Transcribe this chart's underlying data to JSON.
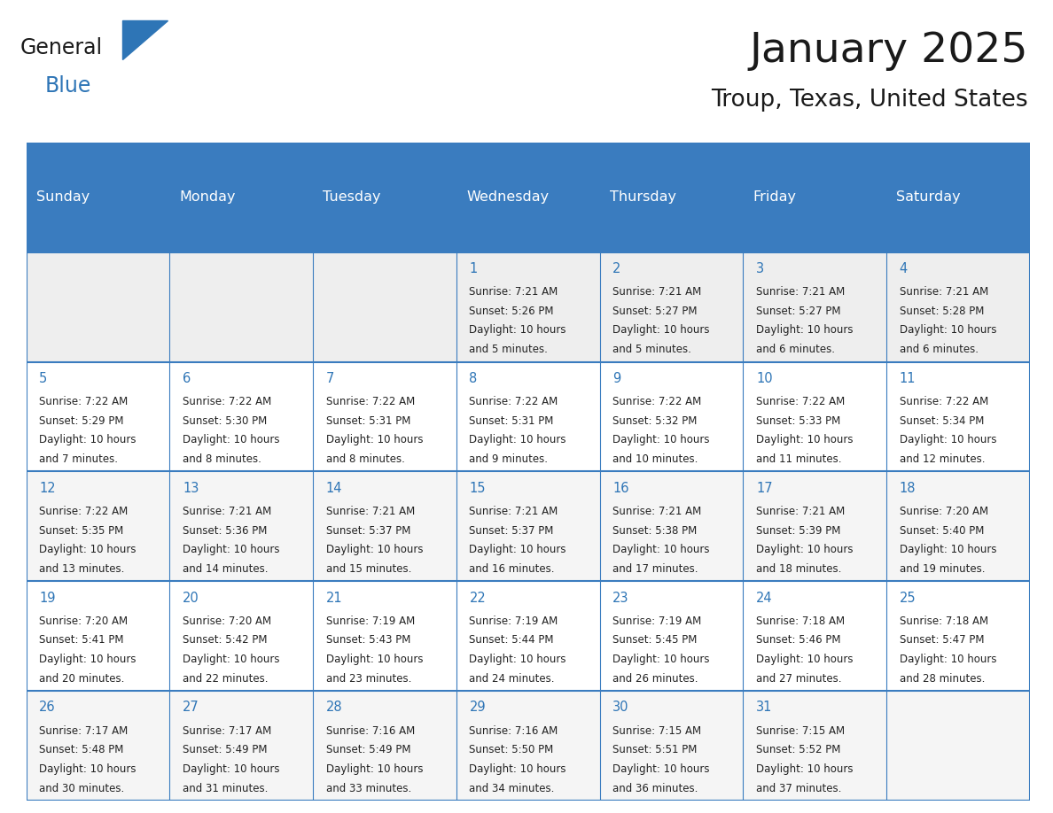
{
  "title": "January 2025",
  "subtitle": "Troup, Texas, United States",
  "header_bg_color": "#3A7CBF",
  "header_text_color": "#FFFFFF",
  "grid_color": "#3A7CBF",
  "title_color": "#1a1a1a",
  "subtitle_color": "#1a1a1a",
  "day_number_color": "#2E75B6",
  "text_color": "#222222",
  "row0_bg": "#EEEEEE",
  "odd_row_bg": "#F5F5F5",
  "even_row_bg": "#FFFFFF",
  "day_names": [
    "Sunday",
    "Monday",
    "Tuesday",
    "Wednesday",
    "Thursday",
    "Friday",
    "Saturday"
  ],
  "days": [
    {
      "day": 1,
      "col": 3,
      "row": 0,
      "sunrise": "7:21 AM",
      "sunset": "5:26 PM",
      "daylight": "10 hours",
      "daylight2": "and 5 minutes."
    },
    {
      "day": 2,
      "col": 4,
      "row": 0,
      "sunrise": "7:21 AM",
      "sunset": "5:27 PM",
      "daylight": "10 hours",
      "daylight2": "and 5 minutes."
    },
    {
      "day": 3,
      "col": 5,
      "row": 0,
      "sunrise": "7:21 AM",
      "sunset": "5:27 PM",
      "daylight": "10 hours",
      "daylight2": "and 6 minutes."
    },
    {
      "day": 4,
      "col": 6,
      "row": 0,
      "sunrise": "7:21 AM",
      "sunset": "5:28 PM",
      "daylight": "10 hours",
      "daylight2": "and 6 minutes."
    },
    {
      "day": 5,
      "col": 0,
      "row": 1,
      "sunrise": "7:22 AM",
      "sunset": "5:29 PM",
      "daylight": "10 hours",
      "daylight2": "and 7 minutes."
    },
    {
      "day": 6,
      "col": 1,
      "row": 1,
      "sunrise": "7:22 AM",
      "sunset": "5:30 PM",
      "daylight": "10 hours",
      "daylight2": "and 8 minutes."
    },
    {
      "day": 7,
      "col": 2,
      "row": 1,
      "sunrise": "7:22 AM",
      "sunset": "5:31 PM",
      "daylight": "10 hours",
      "daylight2": "and 8 minutes."
    },
    {
      "day": 8,
      "col": 3,
      "row": 1,
      "sunrise": "7:22 AM",
      "sunset": "5:31 PM",
      "daylight": "10 hours",
      "daylight2": "and 9 minutes."
    },
    {
      "day": 9,
      "col": 4,
      "row": 1,
      "sunrise": "7:22 AM",
      "sunset": "5:32 PM",
      "daylight": "10 hours",
      "daylight2": "and 10 minutes."
    },
    {
      "day": 10,
      "col": 5,
      "row": 1,
      "sunrise": "7:22 AM",
      "sunset": "5:33 PM",
      "daylight": "10 hours",
      "daylight2": "and 11 minutes."
    },
    {
      "day": 11,
      "col": 6,
      "row": 1,
      "sunrise": "7:22 AM",
      "sunset": "5:34 PM",
      "daylight": "10 hours",
      "daylight2": "and 12 minutes."
    },
    {
      "day": 12,
      "col": 0,
      "row": 2,
      "sunrise": "7:22 AM",
      "sunset": "5:35 PM",
      "daylight": "10 hours",
      "daylight2": "and 13 minutes."
    },
    {
      "day": 13,
      "col": 1,
      "row": 2,
      "sunrise": "7:21 AM",
      "sunset": "5:36 PM",
      "daylight": "10 hours",
      "daylight2": "and 14 minutes."
    },
    {
      "day": 14,
      "col": 2,
      "row": 2,
      "sunrise": "7:21 AM",
      "sunset": "5:37 PM",
      "daylight": "10 hours",
      "daylight2": "and 15 minutes."
    },
    {
      "day": 15,
      "col": 3,
      "row": 2,
      "sunrise": "7:21 AM",
      "sunset": "5:37 PM",
      "daylight": "10 hours",
      "daylight2": "and 16 minutes."
    },
    {
      "day": 16,
      "col": 4,
      "row": 2,
      "sunrise": "7:21 AM",
      "sunset": "5:38 PM",
      "daylight": "10 hours",
      "daylight2": "and 17 minutes."
    },
    {
      "day": 17,
      "col": 5,
      "row": 2,
      "sunrise": "7:21 AM",
      "sunset": "5:39 PM",
      "daylight": "10 hours",
      "daylight2": "and 18 minutes."
    },
    {
      "day": 18,
      "col": 6,
      "row": 2,
      "sunrise": "7:20 AM",
      "sunset": "5:40 PM",
      "daylight": "10 hours",
      "daylight2": "and 19 minutes."
    },
    {
      "day": 19,
      "col": 0,
      "row": 3,
      "sunrise": "7:20 AM",
      "sunset": "5:41 PM",
      "daylight": "10 hours",
      "daylight2": "and 20 minutes."
    },
    {
      "day": 20,
      "col": 1,
      "row": 3,
      "sunrise": "7:20 AM",
      "sunset": "5:42 PM",
      "daylight": "10 hours",
      "daylight2": "and 22 minutes."
    },
    {
      "day": 21,
      "col": 2,
      "row": 3,
      "sunrise": "7:19 AM",
      "sunset": "5:43 PM",
      "daylight": "10 hours",
      "daylight2": "and 23 minutes."
    },
    {
      "day": 22,
      "col": 3,
      "row": 3,
      "sunrise": "7:19 AM",
      "sunset": "5:44 PM",
      "daylight": "10 hours",
      "daylight2": "and 24 minutes."
    },
    {
      "day": 23,
      "col": 4,
      "row": 3,
      "sunrise": "7:19 AM",
      "sunset": "5:45 PM",
      "daylight": "10 hours",
      "daylight2": "and 26 minutes."
    },
    {
      "day": 24,
      "col": 5,
      "row": 3,
      "sunrise": "7:18 AM",
      "sunset": "5:46 PM",
      "daylight": "10 hours",
      "daylight2": "and 27 minutes."
    },
    {
      "day": 25,
      "col": 6,
      "row": 3,
      "sunrise": "7:18 AM",
      "sunset": "5:47 PM",
      "daylight": "10 hours",
      "daylight2": "and 28 minutes."
    },
    {
      "day": 26,
      "col": 0,
      "row": 4,
      "sunrise": "7:17 AM",
      "sunset": "5:48 PM",
      "daylight": "10 hours",
      "daylight2": "and 30 minutes."
    },
    {
      "day": 27,
      "col": 1,
      "row": 4,
      "sunrise": "7:17 AM",
      "sunset": "5:49 PM",
      "daylight": "10 hours",
      "daylight2": "and 31 minutes."
    },
    {
      "day": 28,
      "col": 2,
      "row": 4,
      "sunrise": "7:16 AM",
      "sunset": "5:49 PM",
      "daylight": "10 hours",
      "daylight2": "and 33 minutes."
    },
    {
      "day": 29,
      "col": 3,
      "row": 4,
      "sunrise": "7:16 AM",
      "sunset": "5:50 PM",
      "daylight": "10 hours",
      "daylight2": "and 34 minutes."
    },
    {
      "day": 30,
      "col": 4,
      "row": 4,
      "sunrise": "7:15 AM",
      "sunset": "5:51 PM",
      "daylight": "10 hours",
      "daylight2": "and 36 minutes."
    },
    {
      "day": 31,
      "col": 5,
      "row": 4,
      "sunrise": "7:15 AM",
      "sunset": "5:52 PM",
      "daylight": "10 hours",
      "daylight2": "and 37 minutes."
    }
  ]
}
